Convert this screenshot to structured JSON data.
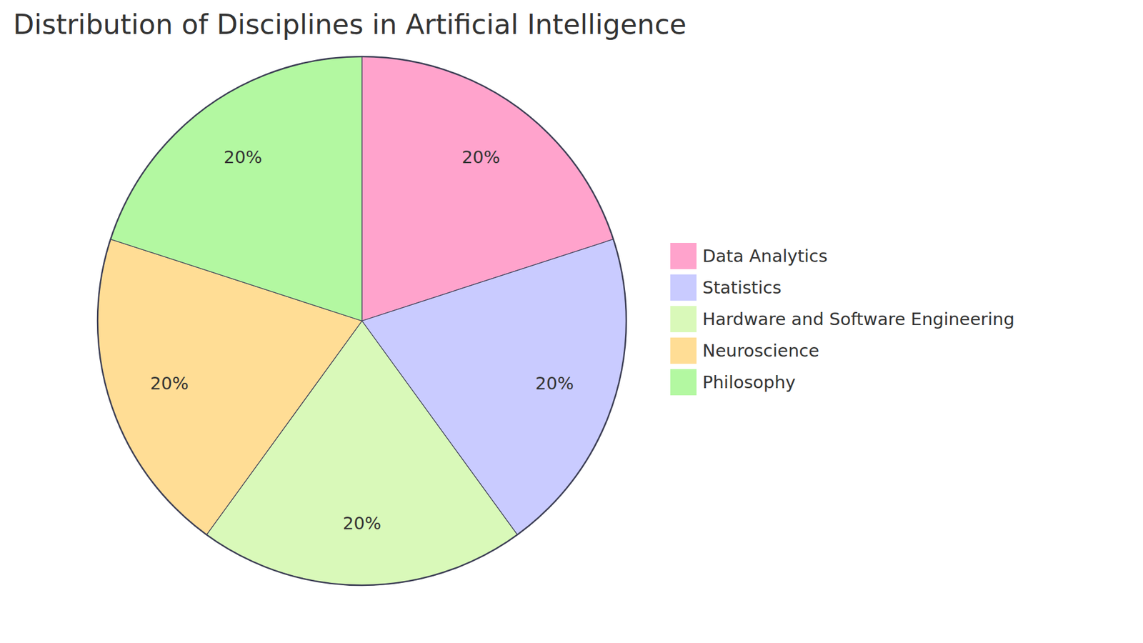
{
  "chart_data": {
    "type": "pie",
    "title": "Distribution of Disciplines in Artificial Intelligence",
    "categories": [
      "Data Analytics",
      "Statistics",
      "Hardware and Software Engineering",
      "Neuroscience",
      "Philosophy"
    ],
    "values": [
      20,
      20,
      20,
      20,
      20
    ],
    "value_labels": [
      "20%",
      "20%",
      "20%",
      "20%",
      "20%"
    ],
    "colors": [
      "#ffa3cc",
      "#c9cbff",
      "#d9f9b9",
      "#ffdd95",
      "#b3f8a1"
    ],
    "data_labels": true,
    "legend": "right"
  }
}
